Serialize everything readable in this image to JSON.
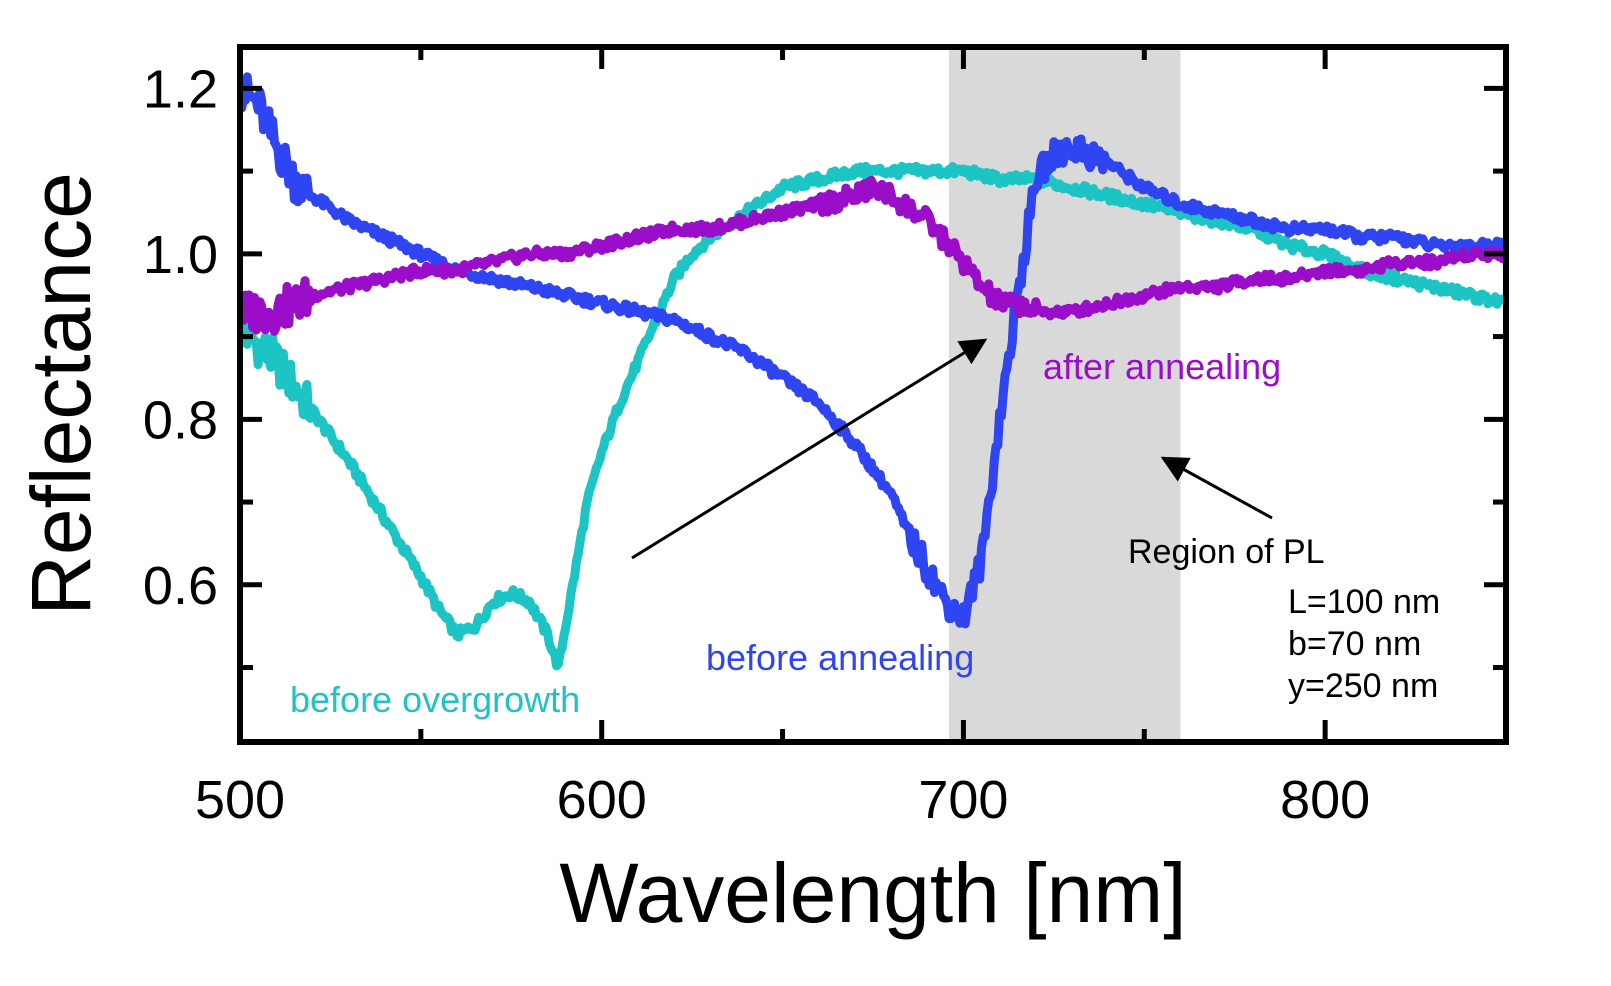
{
  "chart_data": {
    "type": "line",
    "xlabel": "Wavelength [nm]",
    "ylabel": "Reflectance",
    "xlim": [
      500,
      850
    ],
    "ylim": [
      0.41,
      1.25
    ],
    "xticks": [
      500,
      600,
      700,
      800
    ],
    "xtick_labels": [
      "500",
      "600",
      "700",
      "800"
    ],
    "yticks": [
      0.6,
      0.8,
      1.0,
      1.2
    ],
    "ytick_labels": [
      "0.6",
      "0.8",
      "1.0",
      "1.2"
    ],
    "shaded_region": {
      "x": [
        696,
        760
      ],
      "color": "#d9d9d9",
      "label": "Region of PL"
    },
    "series": [
      {
        "name": "before overgrowth",
        "color": "#1cc4c4",
        "x": [
          500,
          510,
          520,
          530,
          540,
          550,
          555,
          560,
          565,
          570,
          575,
          580,
          585,
          588,
          592,
          596,
          600,
          605,
          610,
          615,
          620,
          625,
          630,
          640,
          650,
          660,
          670,
          680,
          690,
          700,
          710,
          720,
          730,
          740,
          750,
          760,
          770,
          780,
          790,
          800,
          810,
          820,
          830,
          840,
          850
        ],
        "y": [
          0.91,
          0.87,
          0.81,
          0.75,
          0.68,
          0.61,
          0.57,
          0.54,
          0.55,
          0.58,
          0.59,
          0.58,
          0.54,
          0.5,
          0.6,
          0.7,
          0.76,
          0.82,
          0.87,
          0.92,
          0.97,
          1.0,
          1.02,
          1.05,
          1.08,
          1.09,
          1.1,
          1.1,
          1.1,
          1.1,
          1.09,
          1.09,
          1.08,
          1.07,
          1.06,
          1.05,
          1.04,
          1.03,
          1.01,
          1.0,
          0.98,
          0.97,
          0.96,
          0.95,
          0.94
        ]
      },
      {
        "name": "before annealing",
        "color": "#2f45f2",
        "x": [
          500,
          505,
          510,
          515,
          520,
          530,
          540,
          550,
          560,
          570,
          580,
          590,
          600,
          610,
          620,
          630,
          640,
          650,
          660,
          670,
          680,
          685,
          690,
          695,
          700,
          705,
          710,
          715,
          720,
          725,
          730,
          735,
          740,
          750,
          760,
          770,
          780,
          790,
          800,
          810,
          820,
          830,
          840,
          850
        ],
        "y": [
          1.2,
          1.18,
          1.13,
          1.09,
          1.07,
          1.04,
          1.02,
          1.0,
          0.98,
          0.97,
          0.96,
          0.95,
          0.94,
          0.93,
          0.92,
          0.9,
          0.88,
          0.85,
          0.82,
          0.77,
          0.71,
          0.66,
          0.62,
          0.58,
          0.56,
          0.63,
          0.8,
          0.95,
          1.09,
          1.12,
          1.13,
          1.12,
          1.11,
          1.08,
          1.06,
          1.05,
          1.04,
          1.03,
          1.03,
          1.02,
          1.02,
          1.01,
          1.01,
          1.01
        ]
      },
      {
        "name": "after annealing",
        "color": "#9a0ec9",
        "x": [
          500,
          510,
          520,
          530,
          540,
          550,
          560,
          570,
          580,
          590,
          600,
          610,
          620,
          630,
          640,
          650,
          660,
          670,
          675,
          680,
          690,
          700,
          705,
          710,
          715,
          720,
          730,
          740,
          750,
          760,
          770,
          780,
          790,
          800,
          810,
          820,
          830,
          840,
          850
        ],
        "y": [
          0.93,
          0.93,
          0.95,
          0.96,
          0.97,
          0.98,
          0.98,
          0.99,
          1.0,
          1.0,
          1.01,
          1.02,
          1.03,
          1.03,
          1.04,
          1.05,
          1.06,
          1.07,
          1.08,
          1.07,
          1.04,
          0.99,
          0.96,
          0.94,
          0.94,
          0.93,
          0.93,
          0.94,
          0.95,
          0.96,
          0.96,
          0.97,
          0.97,
          0.98,
          0.98,
          0.99,
          0.99,
          1.0,
          1.0
        ]
      }
    ],
    "annotations": {
      "before_overgrowth": "before overgrowth",
      "before_annealing": "before annealing",
      "after_annealing": "after annealing",
      "region": "Region of PL",
      "params": [
        "L=100 nm",
        "b=70 nm",
        "y=250 nm"
      ]
    }
  }
}
